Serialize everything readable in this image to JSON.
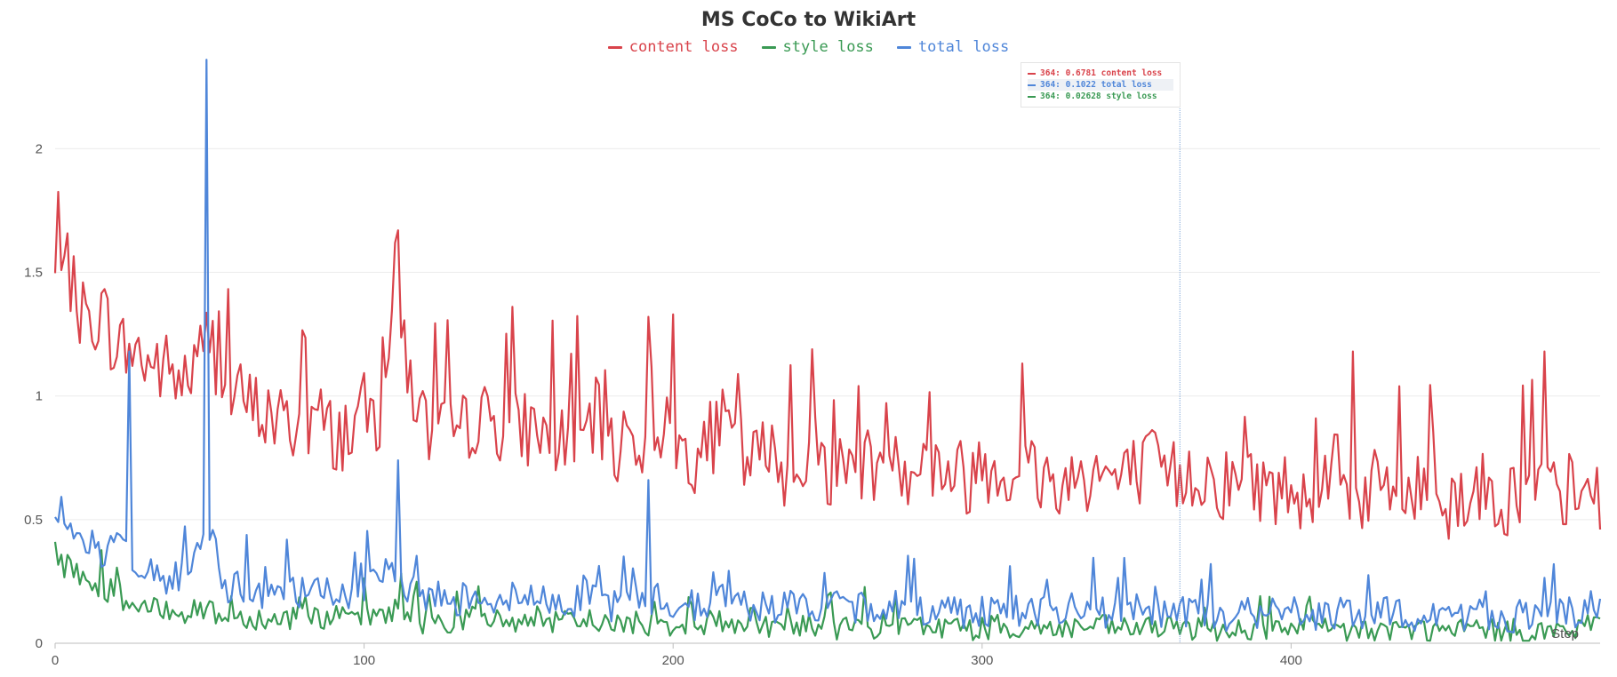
{
  "chart_data": {
    "type": "line",
    "title": "MS CoCo to WikiArt",
    "xlabel": "Step",
    "ylabel": "",
    "xlim": [
      0,
      500
    ],
    "ylim": [
      0,
      2.35
    ],
    "x_ticks": [
      0,
      100,
      200,
      300,
      400
    ],
    "y_ticks": [
      {
        "value": 0,
        "label": "0"
      },
      {
        "value": 0.5,
        "label": "0.5"
      },
      {
        "value": 1,
        "label": "1"
      },
      {
        "value": 1.5,
        "label": "1.5"
      },
      {
        "value": 2,
        "label": "2"
      }
    ],
    "grid": true,
    "legend_position": "top-center",
    "series": [
      {
        "name": "content loss",
        "color": "#d9434b",
        "x_start": 0,
        "step": 5,
        "values": [
          1.45,
          1.42,
          1.28,
          1.33,
          1.18,
          1.17,
          1.12,
          1.1,
          1.05,
          1.08,
          1.25,
          1.0,
          0.97,
          0.93,
          0.9,
          0.86,
          0.88,
          0.9,
          0.82,
          0.85,
          0.92,
          0.9,
          1.45,
          1.05,
          0.85,
          0.83,
          0.8,
          0.9,
          0.88,
          0.88,
          0.85,
          0.86,
          0.82,
          0.8,
          0.8,
          0.9,
          0.75,
          0.84,
          0.8,
          0.88,
          0.8,
          0.75,
          0.75,
          0.88,
          0.78,
          0.7,
          0.76,
          0.7,
          0.7,
          0.78,
          0.7,
          0.68,
          0.72,
          0.7,
          0.85,
          0.7,
          0.72,
          0.7,
          0.68,
          0.65,
          0.72,
          0.7,
          0.68,
          0.7,
          0.65,
          0.62,
          0.66,
          0.68,
          0.67,
          0.63,
          0.68,
          0.7,
          0.66,
          0.65,
          0.68,
          0.65,
          0.62,
          0.64,
          0.63,
          0.6,
          0.62,
          0.6,
          0.65,
          0.6,
          0.58,
          0.6,
          0.62,
          0.6,
          0.58,
          0.64,
          0.55,
          0.58,
          0.62,
          0.58,
          0.56,
          0.6,
          0.62,
          0.58,
          0.6,
          0.57,
          0.46
        ]
      },
      {
        "name": "style loss",
        "color": "#3a9a54",
        "x_start": 0,
        "step": 5,
        "values": [
          0.32,
          0.3,
          0.25,
          0.22,
          0.2,
          0.14,
          0.12,
          0.14,
          0.13,
          0.12,
          0.14,
          0.09,
          0.1,
          0.1,
          0.09,
          0.1,
          0.11,
          0.1,
          0.1,
          0.09,
          0.1,
          0.11,
          0.14,
          0.1,
          0.08,
          0.09,
          0.08,
          0.1,
          0.09,
          0.08,
          0.09,
          0.08,
          0.07,
          0.08,
          0.08,
          0.09,
          0.07,
          0.08,
          0.07,
          0.08,
          0.07,
          0.07,
          0.07,
          0.09,
          0.07,
          0.06,
          0.07,
          0.06,
          0.06,
          0.07,
          0.06,
          0.06,
          0.07,
          0.06,
          0.07,
          0.06,
          0.06,
          0.07,
          0.06,
          0.05,
          0.06,
          0.06,
          0.06,
          0.06,
          0.06,
          0.05,
          0.06,
          0.06,
          0.06,
          0.05,
          0.06,
          0.06,
          0.05,
          0.05,
          0.06,
          0.05,
          0.05,
          0.05,
          0.05,
          0.05,
          0.05,
          0.05,
          0.05,
          0.05,
          0.04,
          0.05,
          0.05,
          0.05,
          0.05,
          0.05,
          0.04,
          0.05,
          0.05,
          0.05,
          0.04,
          0.05,
          0.05,
          0.04,
          0.05,
          0.05,
          0.1
        ]
      },
      {
        "name": "total loss",
        "color": "#4f86d9",
        "x_start": 0,
        "step": 5,
        "values": [
          0.55,
          0.5,
          0.4,
          0.35,
          0.42,
          0.28,
          0.3,
          0.26,
          0.25,
          0.3,
          0.45,
          0.23,
          0.22,
          0.2,
          0.18,
          0.2,
          0.19,
          0.2,
          0.2,
          0.19,
          0.22,
          0.24,
          0.3,
          0.21,
          0.18,
          0.18,
          0.17,
          0.2,
          0.18,
          0.17,
          0.18,
          0.17,
          0.16,
          0.17,
          0.17,
          0.19,
          0.15,
          0.17,
          0.16,
          0.17,
          0.15,
          0.15,
          0.15,
          0.18,
          0.15,
          0.14,
          0.15,
          0.14,
          0.14,
          0.15,
          0.14,
          0.13,
          0.14,
          0.14,
          0.15,
          0.14,
          0.13,
          0.14,
          0.13,
          0.12,
          0.13,
          0.13,
          0.13,
          0.13,
          0.12,
          0.12,
          0.13,
          0.13,
          0.12,
          0.12,
          0.13,
          0.13,
          0.12,
          0.11,
          0.12,
          0.11,
          0.11,
          0.12,
          0.11,
          0.11,
          0.12,
          0.11,
          0.11,
          0.11,
          0.1,
          0.11,
          0.11,
          0.11,
          0.11,
          0.11,
          0.1,
          0.11,
          0.11,
          0.11,
          0.1,
          0.11,
          0.11,
          0.1,
          0.11,
          0.11,
          0.18
        ]
      }
    ],
    "spikes": [
      {
        "series": "total loss",
        "x": 24,
        "y": 1.18
      },
      {
        "series": "total loss",
        "x": 49,
        "y": 2.36
      },
      {
        "series": "total loss",
        "x": 111,
        "y": 0.74
      },
      {
        "series": "content loss",
        "x": 111,
        "y": 1.67
      },
      {
        "series": "content loss",
        "x": 200,
        "y": 1.33
      },
      {
        "series": "total loss",
        "x": 192,
        "y": 0.66
      },
      {
        "series": "content loss",
        "x": 420,
        "y": 1.18
      },
      {
        "series": "content loss",
        "x": 482,
        "y": 1.18
      }
    ],
    "hover": {
      "step": 364,
      "rows": [
        {
          "text": "364: 0.6781 content loss",
          "color": "#d9434b"
        },
        {
          "text": "364: 0.1022 total loss",
          "color": "#4f86d9"
        },
        {
          "text": "364: 0.02628 style loss",
          "color": "#3a9a54"
        }
      ]
    }
  }
}
